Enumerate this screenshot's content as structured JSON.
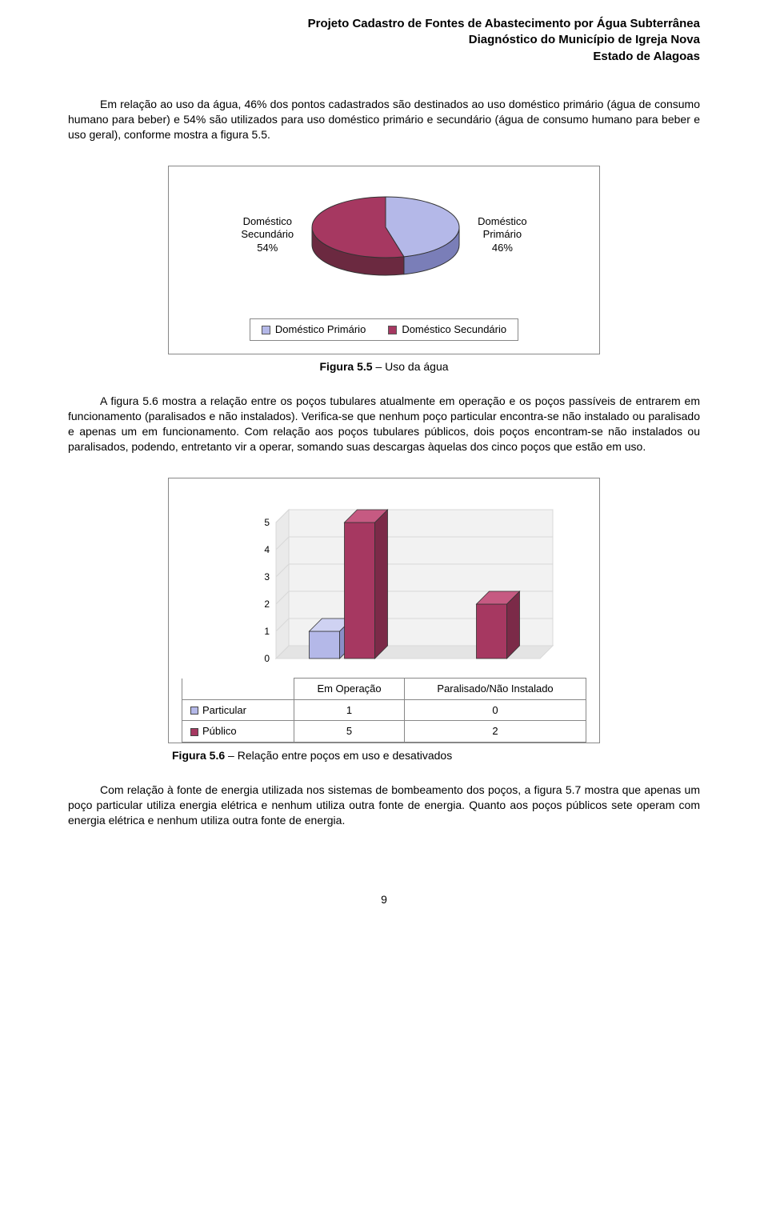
{
  "header": {
    "line1": "Projeto Cadastro de Fontes de Abastecimento por Água Subterrânea",
    "line2": "Diagnóstico do Município de Igreja Nova",
    "line3": "Estado de Alagoas"
  },
  "para1": "Em relação ao uso da água, 46% dos pontos cadastrados são destinados ao uso doméstico primário (água de consumo humano para beber) e 54% são utilizados para uso doméstico primário e secundário (água de consumo humano para beber e uso geral), conforme mostra a figura 5.5.",
  "pie_chart": {
    "type": "pie",
    "slices": [
      {
        "label_lines": [
          "Doméstico",
          "Secundário",
          "54%"
        ],
        "value": 54
      },
      {
        "label_lines": [
          "Doméstico",
          "Primário",
          "46%"
        ],
        "value": 46
      }
    ],
    "colors": {
      "secundario_top": "#a63861",
      "secundario_side": "#6b2940",
      "primario_top": "#b4b8e8",
      "primario_side": "#7a7eb8",
      "outline": "#333333"
    },
    "legend": [
      {
        "swatch": "#b4b8e8",
        "label": "Doméstico Primário"
      },
      {
        "swatch": "#a63861",
        "label": "Doméstico Secundário"
      }
    ]
  },
  "caption1_bold": "Figura 5.5",
  "caption1_rest": " – Uso da água",
  "para2": "A figura 5.6 mostra a relação entre os poços tubulares atualmente em operação e os poços passíveis de entrarem em funcionamento (paralisados e não instalados). Verifica-se que nenhum poço particular encontra-se não instalado ou paralisado e apenas um em funcionamento. Com relação aos poços tubulares públicos, dois poços encontram-se não instalados ou paralisados, podendo, entretanto vir a operar, somando suas descargas àquelas dos cinco poços que estão em uso.",
  "bar_chart": {
    "type": "bar",
    "categories": [
      "Em Operação",
      "Paralisado/Não Instalado"
    ],
    "series": [
      {
        "name": "Particular",
        "color_front": "#b4b8e8",
        "color_side": "#8a8fc8",
        "color_top": "#cfd2f2",
        "values": [
          1,
          0
        ]
      },
      {
        "name": "Público",
        "color_front": "#a63861",
        "color_side": "#7b2a48",
        "color_top": "#c65a82",
        "values": [
          5,
          2
        ]
      }
    ],
    "y_ticks": [
      0,
      1,
      2,
      3,
      4,
      5
    ],
    "ylim": [
      0,
      5
    ],
    "grid_color": "#d8d8d8",
    "axis_color": "#333333",
    "tick_fontsize": 12
  },
  "caption2_bold": "Figura 5.6",
  "caption2_rest": " – Relação entre poços em uso e desativados",
  "para3": "Com relação à fonte de energia utilizada nos sistemas de bombeamento dos poços, a figura 5.7 mostra que apenas um poço particular utiliza energia elétrica e nenhum utiliza outra fonte de energia. Quanto aos poços públicos sete operam com energia elétrica e nenhum utiliza outra fonte de energia.",
  "page_number": "9"
}
